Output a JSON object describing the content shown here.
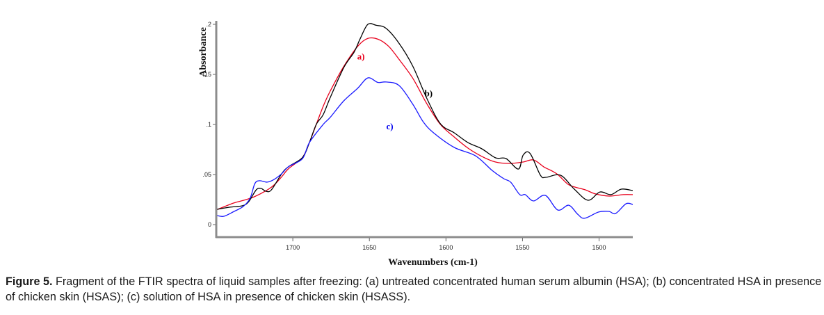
{
  "chart_data": {
    "type": "line",
    "title": "",
    "xlabel": "Wavenumbers (cm-1)",
    "ylabel": "Absorbance",
    "xlim": [
      1750,
      1478
    ],
    "x_reversed": true,
    "ylim": [
      -0.0125,
      0.2
    ],
    "xticks": [
      1700,
      1650,
      1600,
      1550,
      1500
    ],
    "xtick_labels": [
      "1700",
      "1650",
      "1600",
      "1550",
      "1500"
    ],
    "yticks": [
      0,
      0.05,
      0.1,
      0.15,
      0.2
    ],
    "ytick_labels": [
      "0",
      ".05",
      ".1",
      ".15",
      ".2"
    ],
    "grid": false,
    "legend": "none",
    "series": [
      {
        "name": "a)",
        "color": "#e8001c",
        "label_pos": [
          1658,
          0.165
        ],
        "x": [
          1749.5,
          1738.7,
          1732,
          1725.2,
          1716.2,
          1711.7,
          1707.2,
          1702.7,
          1693.7,
          1689.2,
          1684.7,
          1680.2,
          1675.7,
          1666.7,
          1657.7,
          1651,
          1644.1,
          1637.4,
          1630.6,
          1621.6,
          1612.6,
          1603.6,
          1594.6,
          1585.6,
          1576.6,
          1567.6,
          1558.6,
          1549.6,
          1542.8,
          1536,
          1531.5,
          1527,
          1520.3,
          1515.8,
          1509,
          1502.3,
          1493.2,
          1484.2,
          1478
        ],
        "y": [
          0.015,
          0.0215,
          0.0243,
          0.0278,
          0.035,
          0.0403,
          0.0479,
          0.056,
          0.067,
          0.0819,
          0.1,
          0.118,
          0.133,
          0.158,
          0.178,
          0.186,
          0.185,
          0.178,
          0.165,
          0.146,
          0.121,
          0.1,
          0.0875,
          0.0764,
          0.0681,
          0.0625,
          0.0611,
          0.0625,
          0.0646,
          0.0575,
          0.0542,
          0.05,
          0.0403,
          0.0375,
          0.0347,
          0.0306,
          0.0285,
          0.0299,
          0.0299
        ]
      },
      {
        "name": "b)",
        "color": "#000000",
        "label_pos": [
          1614,
          0.128
        ],
        "x": [
          1749.5,
          1741,
          1732.9,
          1728.8,
          1723.9,
          1720.7,
          1717.6,
          1714,
          1707.2,
          1702.7,
          1693.7,
          1689.2,
          1684.7,
          1680.2,
          1675.7,
          1666.7,
          1660,
          1655.9,
          1651,
          1645.5,
          1639.1,
          1630.6,
          1621.6,
          1612.6,
          1603.6,
          1594.6,
          1585.6,
          1576.6,
          1567.6,
          1560.8,
          1552.7,
          1549.6,
          1545.1,
          1538.3,
          1534.7,
          1525.2,
          1516.2,
          1507.2,
          1499.5,
          1492.3,
          1485.5,
          1478
        ],
        "y": [
          0.0153,
          0.0174,
          0.0188,
          0.0229,
          0.0347,
          0.0361,
          0.0333,
          0.0347,
          0.051,
          0.058,
          0.067,
          0.0819,
          0.1,
          0.1097,
          0.1264,
          0.1569,
          0.1722,
          0.186,
          0.2,
          0.199,
          0.196,
          0.181,
          0.158,
          0.1264,
          0.1007,
          0.0917,
          0.0819,
          0.0757,
          0.0667,
          0.066,
          0.0555,
          0.0694,
          0.0711,
          0.0493,
          0.0472,
          0.0493,
          0.0354,
          0.0243,
          0.0326,
          0.0299,
          0.0354,
          0.034
        ]
      },
      {
        "name": "c)",
        "color": "#1a1aff",
        "label_pos": [
          1639,
          0.095
        ],
        "x": [
          1749.5,
          1745,
          1738.3,
          1732.4,
          1727.9,
          1724.8,
          1721.6,
          1716.7,
          1712.2,
          1707.2,
          1702.7,
          1693.7,
          1689.2,
          1680.2,
          1675.7,
          1666.7,
          1657.7,
          1651,
          1644.5,
          1639.1,
          1630.6,
          1621.6,
          1614.9,
          1608.1,
          1594.6,
          1580.8,
          1569.9,
          1562.2,
          1557.7,
          1551.8,
          1548.2,
          1542.8,
          1535.1,
          1527,
          1519.8,
          1514,
          1509.5,
          1500.5,
          1493.7,
          1489.2,
          1482.4,
          1478
        ],
        "y": [
          0.009,
          0.0083,
          0.0132,
          0.0181,
          0.0264,
          0.041,
          0.0438,
          0.0424,
          0.0451,
          0.051,
          0.058,
          0.0658,
          0.0819,
          0.1,
          0.1069,
          0.1236,
          0.1361,
          0.1465,
          0.142,
          0.1424,
          0.1389,
          0.1201,
          0.1028,
          0.0917,
          0.0771,
          0.0688,
          0.0542,
          0.0458,
          0.0423,
          0.0299,
          0.0299,
          0.0236,
          0.0292,
          0.0146,
          0.0194,
          0.0104,
          0.0063,
          0.0125,
          0.0132,
          0.0111,
          0.0208,
          0.0201
        ]
      }
    ]
  },
  "caption": {
    "label": "Figure 5.",
    "text": " Fragment of the FTIR spectra of liquid samples after freezing: (a) untreated concentrated human serum albumin (HSA); (b) concentrated HSA in presence of chicken skin (HSAS); (c) solution of HSA in presence of chicken skin (HSASS)."
  }
}
